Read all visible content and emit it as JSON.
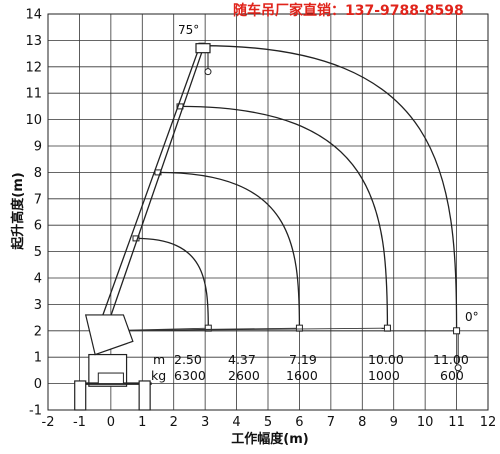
{
  "watermark": "随车吊厂家直销：137-9788-8598",
  "axes": {
    "xlabel": "工作幅度(m)",
    "ylabel": "起升高度(m)",
    "xticks": [
      "-2",
      "-1",
      "0",
      "1",
      "2",
      "3",
      "4",
      "5",
      "6",
      "7",
      "8",
      "9",
      "10",
      "11",
      "12"
    ],
    "yticks": [
      "14",
      "13",
      "12",
      "11",
      "10",
      "9",
      "8",
      "7",
      "6",
      "5",
      "4",
      "3",
      "2",
      "1",
      "0",
      "-1"
    ]
  },
  "angle_labels": {
    "top": "75°",
    "flat": "0°"
  },
  "load_table": {
    "unit_radius": "m",
    "unit_load": "kg",
    "radius": [
      "2.50",
      "4.37",
      "7.19",
      "10.00",
      "11.00"
    ],
    "load": [
      "6300",
      "2600",
      "1600",
      "1000",
      "600"
    ]
  },
  "chart_data": {
    "type": "diagram",
    "x_range": [
      -2,
      12
    ],
    "y_range": [
      -1,
      14
    ],
    "grid": true,
    "boom_pivot": [
      -0.3,
      2.0
    ],
    "boom_angle_max_deg": 75,
    "boom_tips": [
      {
        "max_radius": 3.1,
        "max_reach_height": 2.1,
        "tip_at_75deg": [
          0.8,
          5.5
        ]
      },
      {
        "max_radius": 6.0,
        "max_reach_height": 2.1,
        "tip_at_75deg": [
          1.5,
          8.0
        ]
      },
      {
        "max_radius": 8.8,
        "max_reach_height": 2.1,
        "tip_at_75deg": [
          2.2,
          10.5
        ]
      },
      {
        "max_radius": 11.0,
        "max_reach_height": 2.0,
        "tip_at_75deg": [
          2.9,
          12.8
        ]
      }
    ]
  }
}
